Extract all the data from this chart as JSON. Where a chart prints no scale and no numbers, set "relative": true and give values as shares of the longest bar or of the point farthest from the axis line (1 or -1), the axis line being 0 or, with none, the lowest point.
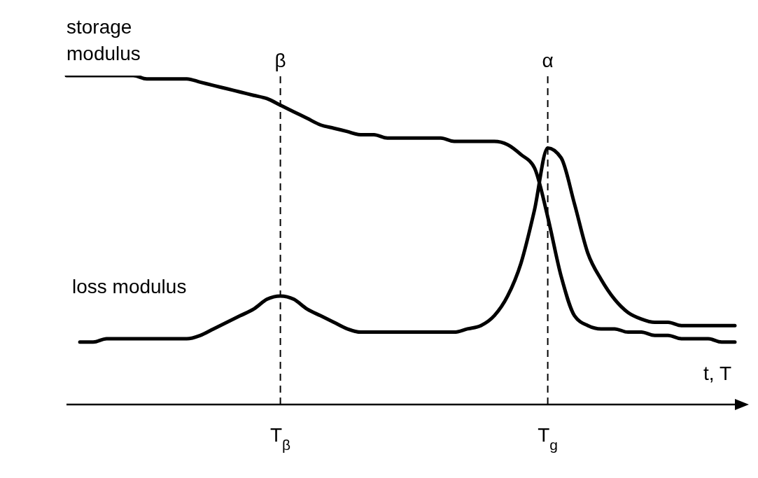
{
  "chart_data": {
    "type": "line",
    "relative": true,
    "xlabel": "t, T",
    "legend": false,
    "grid": false,
    "marker": "none",
    "line_style": "solid",
    "categories": [
      null,
      null,
      null,
      null,
      null,
      null,
      null,
      null,
      null,
      null,
      null,
      null,
      null,
      null,
      null,
      null,
      "T$_{β}$",
      null,
      null,
      null,
      null,
      null,
      null,
      null,
      null,
      null,
      null,
      null,
      null,
      null,
      null,
      null,
      null,
      null,
      null,
      null,
      "T$_{g}$",
      null,
      null,
      null,
      null,
      null,
      null,
      null,
      null,
      null,
      null,
      null,
      null,
      null,
      null
    ],
    "series": [
      {
        "name": "storage modulus",
        "color": "#000000",
        "values": [
          1.0,
          1.0,
          1.0,
          1.0,
          1.0,
          1.0,
          0.99,
          0.99,
          0.99,
          0.99,
          0.98,
          0.97,
          0.96,
          0.95,
          0.94,
          0.93,
          0.91,
          0.89,
          0.87,
          0.85,
          0.84,
          0.83,
          0.82,
          0.82,
          0.81,
          0.81,
          0.81,
          0.81,
          0.81,
          0.8,
          0.8,
          0.8,
          0.8,
          0.79,
          0.76,
          0.72,
          0.57,
          0.39,
          0.27,
          0.24,
          0.23,
          0.23,
          0.22,
          0.22,
          0.21,
          0.21,
          0.2,
          0.2,
          0.2,
          0.19,
          0.19
        ]
      },
      {
        "name": "loss modulus",
        "color": "#000000",
        "values": [
          null,
          0.19,
          0.19,
          0.2,
          0.2,
          0.2,
          0.2,
          0.2,
          0.2,
          0.2,
          0.21,
          0.23,
          0.25,
          0.27,
          0.29,
          0.32,
          0.33,
          0.32,
          0.29,
          0.27,
          0.25,
          0.23,
          0.22,
          0.22,
          0.22,
          0.22,
          0.22,
          0.22,
          0.22,
          0.22,
          0.23,
          0.24,
          0.27,
          0.33,
          0.43,
          0.59,
          0.78,
          0.75,
          0.61,
          0.46,
          0.38,
          0.32,
          0.28,
          0.26,
          0.25,
          0.25,
          0.24,
          0.24,
          0.24,
          0.24,
          0.24
        ]
      }
    ],
    "ref_lines": [
      {
        "axis": "x",
        "value": "T$_{β}$",
        "label": "β",
        "line_style": "dashed",
        "color": "#000000"
      },
      {
        "axis": "x",
        "value": "T$_{g}$",
        "label": "α",
        "line_style": "dashed",
        "color": "#000000"
      }
    ]
  }
}
